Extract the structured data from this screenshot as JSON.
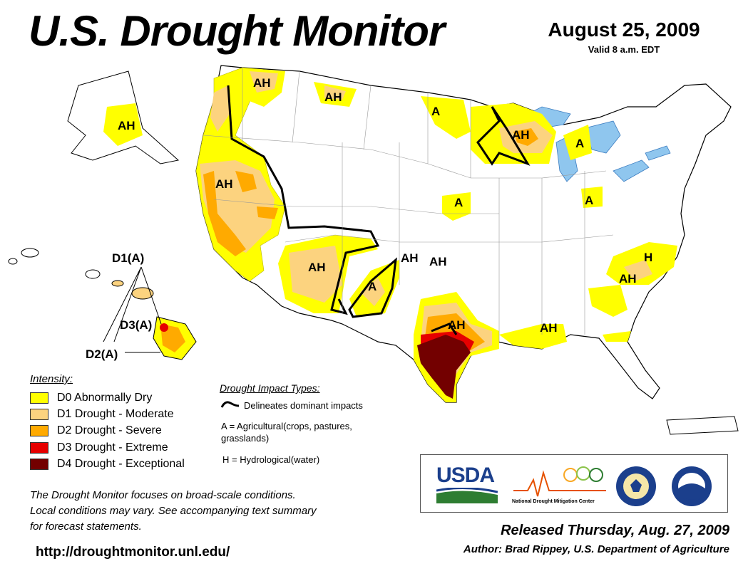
{
  "header": {
    "title": "U.S. Drought Monitor",
    "date": "August 25, 2009",
    "valid": "Valid 8 a.m. EDT"
  },
  "colors": {
    "D0": "#ffff00",
    "D1": "#fcd37f",
    "D2": "#ffaa00",
    "D3": "#e60000",
    "D4": "#730000",
    "lakes": "#8fc6ee",
    "water_lines": "#6fa8dc"
  },
  "map": {
    "region_labels": [
      "AH",
      "AH",
      "A",
      "AH",
      "A",
      "AH",
      "AH",
      "AH",
      "A",
      "AH",
      "AH",
      "A",
      "A",
      "AH",
      "H",
      "AH",
      "AH"
    ],
    "hawaii_labels": {
      "d1": "D1(A)",
      "d3": "D3(A)",
      "d2": "D2(A)"
    }
  },
  "legend": {
    "title": "Intensity:",
    "items": [
      {
        "key": "D0",
        "label": "D0 Abnormally Dry"
      },
      {
        "key": "D1",
        "label": "D1 Drought - Moderate"
      },
      {
        "key": "D2",
        "label": "D2 Drought - Severe"
      },
      {
        "key": "D3",
        "label": "D3 Drought - Extreme"
      },
      {
        "key": "D4",
        "label": "D4 Drought - Exceptional"
      }
    ]
  },
  "impacts": {
    "title": "Drought Impact Types:",
    "line": "Delineates dominant impacts",
    "a_line1": "A = Agricultural(crops, pastures,",
    "a_line2": "grasslands)",
    "h": "H = Hydrological(water)"
  },
  "note": {
    "line1": "The Drought Monitor focuses on broad-scale conditions.",
    "line2": "Local conditions may vary. See accompanying text summary",
    "line3": "for forecast statements."
  },
  "url": "http://droughtmonitor.unl.edu/",
  "logos": {
    "usda": "USDA",
    "ndmc": "National Drought Mitigation Center"
  },
  "footer": {
    "released": "Released Thursday, Aug. 27, 2009",
    "author": "Author: Brad Rippey, U.S. Department of Agriculture"
  }
}
